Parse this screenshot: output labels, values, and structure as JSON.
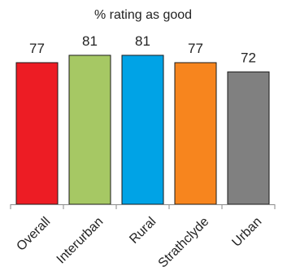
{
  "chart_data": {
    "type": "bar",
    "title": "% rating as good",
    "xlabel": "",
    "ylabel": "",
    "categories": [
      "Overall",
      "Interurban",
      "Rural",
      "Strathclyde",
      "Urban"
    ],
    "values": [
      77,
      81,
      81,
      77,
      72
    ],
    "value_labels": [
      "77",
      "81",
      "81",
      "77",
      "72"
    ],
    "colors": [
      "#ed1c24",
      "#a6c864",
      "#00a3e6",
      "#f7851e",
      "#808080"
    ],
    "ylim": [
      0,
      100
    ],
    "grid": false,
    "legend": "none"
  }
}
